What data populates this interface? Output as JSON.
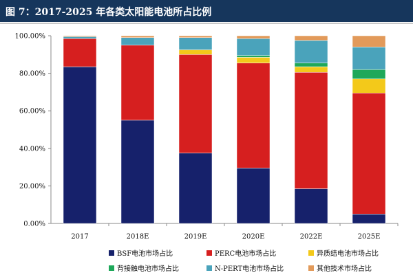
{
  "header": {
    "title": "图 7：2017-2025 年各类太阳能电池所占比例"
  },
  "chart_data": {
    "type": "bar",
    "stacked": true,
    "categories": [
      "2017",
      "2018E",
      "2019E",
      "2020E",
      "2022E",
      "2025E"
    ],
    "series": [
      {
        "name": "BSF电池市场占比",
        "color": "#16216b",
        "values": [
          0.835,
          0.55,
          0.375,
          0.295,
          0.185,
          0.05
        ]
      },
      {
        "name": "PERC电池市场占比",
        "color": "#d61f1f",
        "values": [
          0.15,
          0.4,
          0.525,
          0.56,
          0.62,
          0.645
        ]
      },
      {
        "name": "异质结电池市场占比",
        "color": "#f3c91a",
        "values": [
          0.0,
          0.0,
          0.025,
          0.03,
          0.03,
          0.075
        ]
      },
      {
        "name": "背接触电池市场占比",
        "color": "#1ea85a",
        "values": [
          0.0,
          0.0,
          0.0,
          0.01,
          0.02,
          0.05
        ]
      },
      {
        "name": "N-PERT电池市场占比",
        "color": "#4aa3bb",
        "values": [
          0.01,
          0.04,
          0.065,
          0.09,
          0.12,
          0.12
        ]
      },
      {
        "name": "其他技术市场占比",
        "color": "#e29a5a",
        "values": [
          0.005,
          0.01,
          0.01,
          0.015,
          0.025,
          0.06
        ]
      }
    ],
    "yticks": [
      "0.00%",
      "20.00%",
      "40.00%",
      "60.00%",
      "80.00%",
      "100.00%"
    ],
    "ylim": [
      0,
      1
    ],
    "grid": false,
    "legend": "bottom"
  }
}
